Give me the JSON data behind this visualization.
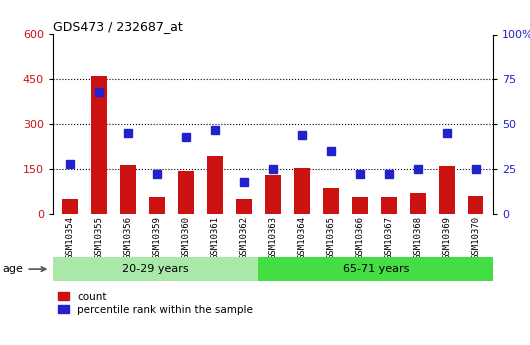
{
  "title": "GDS473 / 232687_at",
  "samples": [
    "GSM10354",
    "GSM10355",
    "GSM10356",
    "GSM10359",
    "GSM10360",
    "GSM10361",
    "GSM10362",
    "GSM10363",
    "GSM10364",
    "GSM10365",
    "GSM10366",
    "GSM10367",
    "GSM10368",
    "GSM10369",
    "GSM10370"
  ],
  "counts": [
    50,
    460,
    165,
    55,
    145,
    195,
    50,
    130,
    155,
    85,
    55,
    55,
    70,
    160,
    60
  ],
  "percentile_ranks": [
    28,
    68,
    45,
    22,
    43,
    47,
    18,
    25,
    44,
    35,
    22,
    22,
    25,
    45,
    25
  ],
  "groups": [
    {
      "label": "20-29 years",
      "start": 0,
      "end": 7,
      "color": "#aae8aa"
    },
    {
      "label": "65-71 years",
      "start": 7,
      "end": 15,
      "color": "#44dd44"
    }
  ],
  "age_label": "age",
  "ylim_left": [
    0,
    600
  ],
  "ylim_right": [
    0,
    100
  ],
  "yticks_left": [
    0,
    150,
    300,
    450,
    600
  ],
  "yticks_right": [
    0,
    25,
    50,
    75,
    100
  ],
  "yticklabels_right": [
    "0",
    "25",
    "50",
    "75",
    "100%"
  ],
  "bar_color": "#cc1111",
  "percentile_color": "#2222cc",
  "bg_color": "#ffffff",
  "left_tick_color": "#cc1111",
  "right_tick_color": "#2222cc",
  "legend_count_label": "count",
  "legend_pct_label": "percentile rank within the sample",
  "bar_width": 0.55,
  "marker_size": 6
}
